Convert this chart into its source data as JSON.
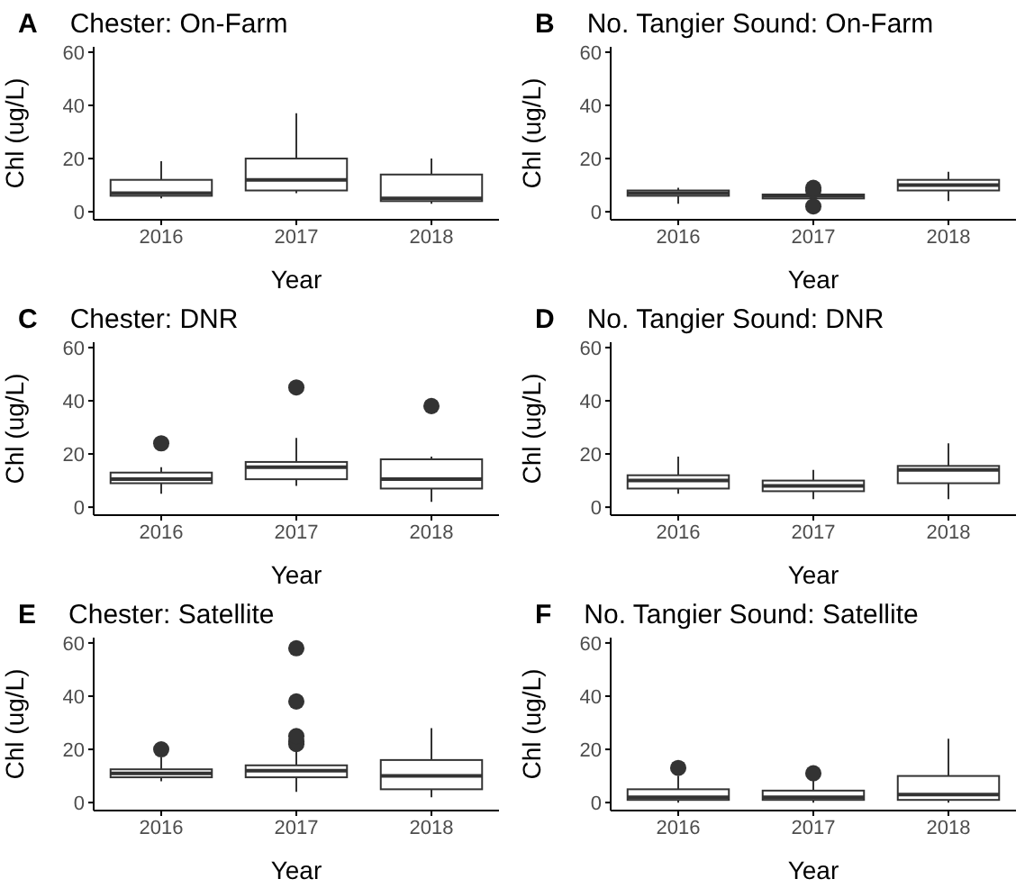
{
  "chart_data": [
    {
      "type": "box",
      "title": "Chester: On-Farm",
      "annotations": [
        "A"
      ],
      "xlabel": "Year",
      "ylabel": "Chl (ug/L)",
      "categories": [
        "2016",
        "2017",
        "2018"
      ],
      "ylim": [
        -3,
        62
      ],
      "yticks": [
        0,
        20,
        40,
        60
      ],
      "boxes": [
        {
          "low": 5,
          "q1": 6,
          "median": 7,
          "q3": 12,
          "high": 19
        },
        {
          "low": 7,
          "q1": 8,
          "median": 12,
          "q3": 20,
          "high": 37
        },
        {
          "low": 3,
          "q1": 4,
          "median": 5,
          "q3": 14,
          "high": 20
        }
      ]
    },
    {
      "type": "box",
      "title": "No. Tangier Sound: On-Farm",
      "annotations": [
        "B"
      ],
      "xlabel": "Year",
      "ylabel": "Chl (ug/L)",
      "categories": [
        "2016",
        "2017",
        "2018"
      ],
      "ylim": [
        -3,
        62
      ],
      "yticks": [
        0,
        20,
        40,
        60
      ],
      "boxes": [
        {
          "low": 3,
          "q1": 6,
          "median": 7,
          "q3": 8,
          "high": 9
        },
        {
          "low": 5,
          "q1": 5,
          "median": 6,
          "q3": 6.5,
          "high": 7,
          "outliers": [
            2,
            8,
            9
          ]
        },
        {
          "low": 4,
          "q1": 8,
          "median": 10,
          "q3": 12,
          "high": 15
        }
      ]
    },
    {
      "type": "box",
      "title": "Chester: DNR",
      "annotations": [
        "C"
      ],
      "xlabel": "Year",
      "ylabel": "Chl (ug/L)",
      "categories": [
        "2016",
        "2017",
        "2018"
      ],
      "ylim": [
        -3,
        62
      ],
      "yticks": [
        0,
        20,
        40,
        60
      ],
      "boxes": [
        {
          "low": 5,
          "q1": 9,
          "median": 10.5,
          "q3": 13,
          "high": 15,
          "outliers": [
            24
          ]
        },
        {
          "low": 8,
          "q1": 10.5,
          "median": 15,
          "q3": 17,
          "high": 26,
          "outliers": [
            45
          ]
        },
        {
          "low": 2,
          "q1": 7,
          "median": 10.5,
          "q3": 18,
          "high": 19,
          "outliers": [
            38
          ]
        }
      ]
    },
    {
      "type": "box",
      "title": "No. Tangier Sound: DNR",
      "annotations": [
        "D"
      ],
      "xlabel": "Year",
      "ylabel": "Chl (ug/L)",
      "categories": [
        "2016",
        "2017",
        "2018"
      ],
      "ylim": [
        -3,
        62
      ],
      "yticks": [
        0,
        20,
        40,
        60
      ],
      "boxes": [
        {
          "low": 5,
          "q1": 7,
          "median": 10,
          "q3": 12,
          "high": 19
        },
        {
          "low": 3,
          "q1": 6,
          "median": 8,
          "q3": 10,
          "high": 14
        },
        {
          "low": 3,
          "q1": 9,
          "median": 14,
          "q3": 15.5,
          "high": 24
        }
      ]
    },
    {
      "type": "box",
      "title": "Chester: Satellite",
      "annotations": [
        "E"
      ],
      "xlabel": "Year",
      "ylabel": "Chl (ug/L)",
      "categories": [
        "2016",
        "2017",
        "2018"
      ],
      "ylim": [
        -3,
        62
      ],
      "yticks": [
        0,
        20,
        40,
        60
      ],
      "boxes": [
        {
          "low": 8,
          "q1": 9.5,
          "median": 11,
          "q3": 12.5,
          "high": 17,
          "outliers": [
            20
          ]
        },
        {
          "low": 4,
          "q1": 9.5,
          "median": 12,
          "q3": 14,
          "high": 20,
          "outliers": [
            22,
            23,
            25,
            38,
            58
          ]
        },
        {
          "low": 2,
          "q1": 5,
          "median": 10,
          "q3": 16,
          "high": 28
        }
      ]
    },
    {
      "type": "box",
      "title": "No. Tangier Sound: Satellite",
      "annotations": [
        "F"
      ],
      "xlabel": "Year",
      "ylabel": "Chl (ug/L)",
      "categories": [
        "2016",
        "2017",
        "2018"
      ],
      "ylim": [
        -3,
        62
      ],
      "yticks": [
        0,
        20,
        40,
        60
      ],
      "boxes": [
        {
          "low": 0,
          "q1": 1,
          "median": 2,
          "q3": 5,
          "high": 10,
          "outliers": [
            13
          ]
        },
        {
          "low": 0,
          "q1": 1,
          "median": 2,
          "q3": 4.5,
          "high": 9,
          "outliers": [
            11
          ]
        },
        {
          "low": 0,
          "q1": 1,
          "median": 3,
          "q3": 10,
          "high": 24
        }
      ]
    }
  ]
}
